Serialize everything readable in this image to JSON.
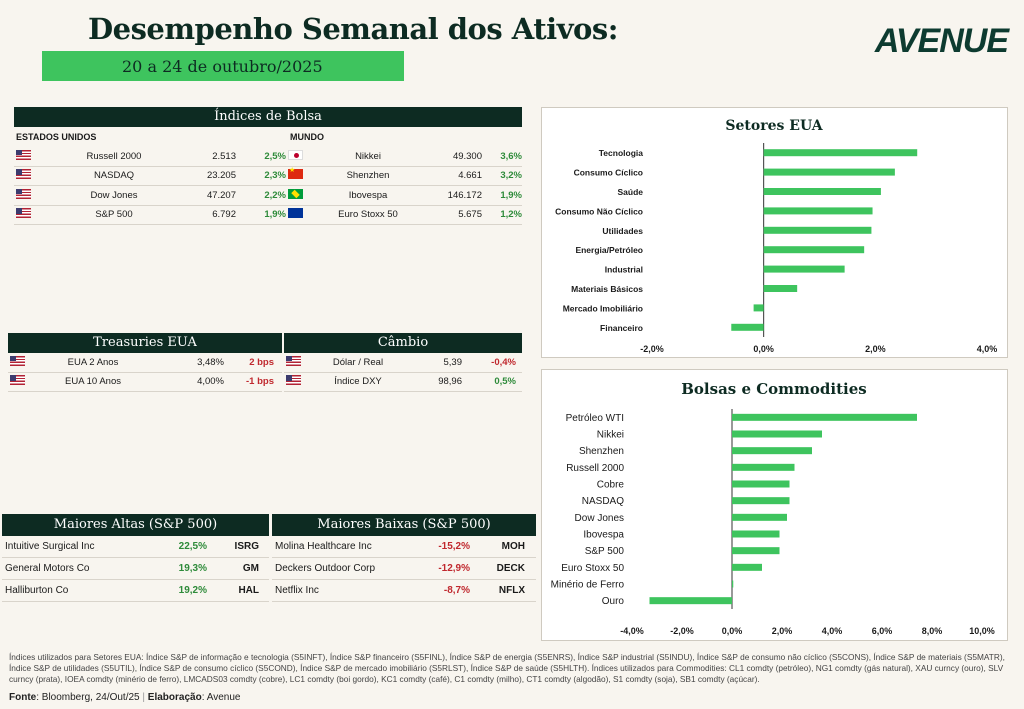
{
  "header": {
    "title": "Desempenho Semanal dos Ativos:",
    "date_range": "20 a 24 de outubro/2025",
    "logo": "AVENUE"
  },
  "indices": {
    "title": "Índices de Bolsa",
    "us_label": "ESTADOS UNIDOS",
    "world_label": "MUNDO",
    "us": [
      {
        "flag": "us",
        "name": "Russell 2000",
        "value": "2.513",
        "change": "2,5%"
      },
      {
        "flag": "us",
        "name": "NASDAQ",
        "value": "23.205",
        "change": "2,3%"
      },
      {
        "flag": "us",
        "name": "Dow Jones",
        "value": "47.207",
        "change": "2,2%"
      },
      {
        "flag": "us",
        "name": "S&P 500",
        "value": "6.792",
        "change": "1,9%"
      }
    ],
    "world": [
      {
        "flag": "jp",
        "name": "Nikkei",
        "value": "49.300",
        "change": "3,6%"
      },
      {
        "flag": "cn",
        "name": "Shenzhen",
        "value": "4.661",
        "change": "3,2%"
      },
      {
        "flag": "br",
        "name": "Ibovespa",
        "value": "146.172",
        "change": "1,9%"
      },
      {
        "flag": "eu",
        "name": "Euro Stoxx 50",
        "value": "5.675",
        "change": "1,2%"
      }
    ]
  },
  "treasuries": {
    "title": "Treasuries EUA",
    "rows": [
      {
        "flag": "us",
        "name": "EUA 2 Anos",
        "value": "3,48%",
        "change": "2 bps",
        "sign": "neg"
      },
      {
        "flag": "us",
        "name": "EUA 10 Anos",
        "value": "4,00%",
        "change": "-1 bps",
        "sign": "neg"
      }
    ]
  },
  "cambio": {
    "title": "Câmbio",
    "rows": [
      {
        "flag": "us",
        "name": "Dólar / Real",
        "value": "5,39",
        "change": "-0,4%",
        "sign": "neg"
      },
      {
        "flag": "us",
        "name": "Índice DXY",
        "value": "98,96",
        "change": "0,5%",
        "sign": "pos"
      }
    ]
  },
  "altas": {
    "title": "Maiores Altas (S&P 500)",
    "rows": [
      {
        "name": "Intuitive Surgical Inc",
        "change": "22,5%",
        "ticker": "ISRG"
      },
      {
        "name": "General Motors Co",
        "change": "19,3%",
        "ticker": "GM"
      },
      {
        "name": "Halliburton Co",
        "change": "19,2%",
        "ticker": "HAL"
      }
    ]
  },
  "baixas": {
    "title": "Maiores Baixas (S&P 500)",
    "rows": [
      {
        "name": "Molina Healthcare Inc",
        "change": "-15,2%",
        "ticker": "MOH"
      },
      {
        "name": "Deckers Outdoor Corp",
        "change": "-12,9%",
        "ticker": "DECK"
      },
      {
        "name": "Netflix Inc",
        "change": "-8,7%",
        "ticker": "NFLX"
      }
    ]
  },
  "chart_data": [
    {
      "type": "bar",
      "orientation": "horizontal",
      "title": "Setores EUA",
      "categories": [
        "Tecnologia",
        "Consumo Cíclico",
        "Saúde",
        "Consumo Não Cíclico",
        "Utilidades",
        "Energia/Petróleo",
        "Industrial",
        "Materiais Básicos",
        "Mercado Imobiliário",
        "Financeiro"
      ],
      "values": [
        2.75,
        2.35,
        2.1,
        1.95,
        1.93,
        1.8,
        1.45,
        0.6,
        -0.18,
        -0.58
      ],
      "xlim": [
        -2,
        4
      ],
      "ticks": [
        -2,
        0,
        2,
        4
      ],
      "tick_labels": [
        "-2,0%",
        "0,0%",
        "2,0%",
        "4,0%"
      ],
      "color": "#3ec45e"
    },
    {
      "type": "bar",
      "orientation": "horizontal",
      "title": "Bolsas e Commodities",
      "categories": [
        "Petróleo WTI",
        "Nikkei",
        "Shenzhen",
        "Russell 2000",
        "Cobre",
        "NASDAQ",
        "Dow Jones",
        "Ibovespa",
        "S&P 500",
        "Euro Stoxx 50",
        "Minério de Ferro",
        "Ouro"
      ],
      "values": [
        7.4,
        3.6,
        3.2,
        2.5,
        2.3,
        2.3,
        2.2,
        1.9,
        1.9,
        1.2,
        0.05,
        -3.3
      ],
      "xlim": [
        -4,
        10
      ],
      "ticks": [
        -4,
        -2,
        0,
        2,
        4,
        6,
        8,
        10
      ],
      "tick_labels": [
        "-4,0%",
        "-2,0%",
        "0,0%",
        "2,0%",
        "4,0%",
        "6,0%",
        "8,0%",
        "10,0%"
      ],
      "color": "#3ec45e"
    }
  ],
  "footer": {
    "note": "Índices utilizados para Setores EUA: Índice S&P de informação e tecnologia (S5INFT), Índice S&P financeiro (S5FINL), Índice S&P de energia (S5ENRS), Índice S&P industrial (S5INDU), Índice S&P de consumo não cíclico (S5CONS), Índice S&P de materiais (S5MATR), Índice S&P de utilidades (S5UTIL), Índice S&P de consumo cíclico (S5COND), Índice S&P de mercado imobiliário (S5RLST), Índice S&P de saúde (S5HLTH). Índices utilizados para Commodities: CL1 comdty (petróleo), NG1 comdty (gás natural), XAU curncy (ouro), SLV curncy (prata), IOEA comdty (minério de ferro), LMCADS03 comdty (cobre), LC1 comdty (boi gordo), KC1 comdty (café), C1 comdty (milho), CT1 comdty (algodão), S1 comdty (soja), SB1 comdty (açúcar).",
    "source_label": "Fonte",
    "source_value": ": Bloomberg, 24/Out/25",
    "elab_label": "Elaboração",
    "elab_value": ": Avenue"
  }
}
